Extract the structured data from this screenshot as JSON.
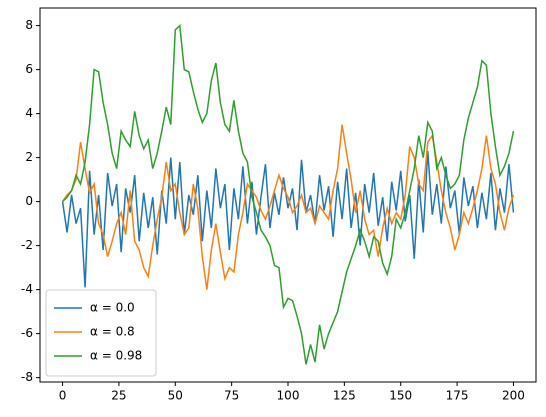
{
  "chart_data": {
    "type": "line",
    "x": [
      0,
      2,
      4,
      6,
      8,
      10,
      12,
      14,
      16,
      18,
      20,
      22,
      24,
      26,
      28,
      30,
      32,
      34,
      36,
      38,
      40,
      42,
      44,
      46,
      48,
      50,
      52,
      54,
      56,
      58,
      60,
      62,
      64,
      66,
      68,
      70,
      72,
      74,
      76,
      78,
      80,
      82,
      84,
      86,
      88,
      90,
      92,
      94,
      96,
      98,
      100,
      102,
      104,
      106,
      108,
      110,
      112,
      114,
      116,
      118,
      120,
      122,
      124,
      126,
      128,
      130,
      132,
      134,
      136,
      138,
      140,
      142,
      144,
      146,
      148,
      150,
      152,
      154,
      156,
      158,
      160,
      162,
      164,
      166,
      168,
      170,
      172,
      174,
      176,
      178,
      180,
      182,
      184,
      186,
      188,
      190,
      192,
      194,
      196,
      198,
      200
    ],
    "series": [
      {
        "name": "α = 0.0",
        "color": "#1f77b4",
        "values": [
          0,
          -1.4,
          0.3,
          -1.0,
          -0.3,
          -3.9,
          1.4,
          -1.5,
          0.3,
          -2.2,
          1.3,
          -0.2,
          0.8,
          -2.3,
          0.6,
          -0.5,
          1.2,
          -1.8,
          0.4,
          -1.2,
          0.2,
          -2.4,
          0.5,
          -1.0,
          2.0,
          -0.8,
          1.8,
          -1.5,
          0.3,
          -0.6,
          1.2,
          -1.8,
          0.5,
          -1.2,
          1.5,
          -0.3,
          0.8,
          -2.2,
          0.6,
          -0.8,
          1.6,
          -1.0,
          0.9,
          -1.5,
          0.2,
          1.7,
          -1.2,
          0.4,
          -0.6,
          1.1,
          -0.3,
          0.6,
          -1.3,
          1.9,
          -0.5,
          0.3,
          -1.0,
          1.2,
          -0.4,
          0.7,
          -1.6,
          0.9,
          -0.8,
          1.5,
          -1.2,
          0.4,
          -2.0,
          0.8,
          -0.5,
          1.3,
          -1.1,
          0.2,
          -1.8,
          0.9,
          -0.4,
          1.4,
          -0.9,
          0.3,
          -2.6,
          1.0,
          -1.4,
          2.3,
          -0.6,
          0.8,
          -1.0,
          1.6,
          -0.3,
          0.5,
          -1.5,
          1.1,
          -0.2,
          0.7,
          -1.2,
          0.4,
          -0.8,
          1.3,
          -1.3,
          0.6,
          -0.5,
          1.7,
          -0.5
        ]
      },
      {
        "name": "α = 0.8",
        "color": "#ff7f0e",
        "values": [
          0,
          0.3,
          0.5,
          1.0,
          2.7,
          1.5,
          0.4,
          0.8,
          -1.0,
          -1.5,
          -2.5,
          -1.8,
          -1.0,
          -0.5,
          -1.5,
          0.5,
          -1.8,
          -2.2,
          -3.0,
          -3.4,
          -2.0,
          -0.8,
          0.2,
          1.8,
          0.5,
          0.8,
          -0.5,
          -1.5,
          -1.2,
          0.8,
          -0.3,
          -2.5,
          -4.0,
          -2.2,
          -1.0,
          -2.3,
          -3.5,
          -3.0,
          -3.2,
          -1.5,
          -0.5,
          0.8,
          0.5,
          0.2,
          -0.4,
          -0.8,
          -0.2,
          0.5,
          1.2,
          0.6,
          0.2,
          -0.5,
          -0.2,
          0.3,
          -0.5,
          -0.3,
          -1.0,
          -0.2,
          -0.5,
          -0.8,
          0.5,
          1.5,
          3.5,
          2.2,
          1.0,
          -0.5,
          0.5,
          -0.8,
          -1.5,
          -1.3,
          -2.5,
          -1.2,
          -0.3,
          -1.0,
          -0.5,
          -0.8,
          0.3,
          2.5,
          2.0,
          0.8,
          0.5,
          2.7,
          3.0,
          1.8,
          0.5,
          -0.5,
          -1.2,
          -2.2,
          -1.5,
          -0.5,
          -1.0,
          -0.3,
          0.5,
          1.5,
          3.0,
          1.5,
          0.8,
          -0.5,
          -1.3,
          -0.3,
          0.3
        ]
      },
      {
        "name": "α = 0.98",
        "color": "#2ca02c",
        "values": [
          0,
          0.2,
          0.5,
          1.2,
          0.8,
          1.8,
          3.5,
          6.0,
          5.9,
          4.5,
          3.5,
          2.2,
          1.5,
          3.2,
          2.8,
          2.5,
          4.1,
          3.0,
          2.4,
          2.8,
          1.5,
          2.2,
          3.2,
          4.3,
          3.5,
          7.8,
          8.0,
          6.0,
          5.9,
          5.0,
          4.2,
          3.6,
          4.0,
          5.5,
          6.3,
          4.5,
          3.5,
          3.2,
          4.6,
          3.2,
          2.2,
          1.8,
          0.2,
          -0.5,
          -1.3,
          -1.6,
          -2.0,
          -2.9,
          -3.0,
          -4.8,
          -4.4,
          -4.5,
          -5.2,
          -6.0,
          -7.4,
          -6.5,
          -7.3,
          -5.6,
          -6.7,
          -6.0,
          -5.5,
          -5.0,
          -4.1,
          -3.2,
          -2.6,
          -2.0,
          -1.3,
          -1.8,
          -2.5,
          -1.6,
          -1.8,
          -2.8,
          -3.3,
          -2.5,
          -0.8,
          -1.2,
          -0.5,
          0.5,
          1.5,
          3.0,
          2.0,
          3.6,
          3.2,
          1.5,
          2.0,
          1.2,
          0.6,
          0.8,
          1.2,
          2.8,
          3.8,
          4.5,
          5.2,
          6.4,
          6.2,
          4.0,
          2.5,
          1.2,
          1.6,
          2.2,
          3.2
        ]
      }
    ],
    "xlim": [
      -10,
      210
    ],
    "ylim": [
      -8.2,
      8.8
    ],
    "xticks": [
      0,
      25,
      50,
      75,
      100,
      125,
      150,
      175,
      200
    ],
    "yticks": [
      -8,
      -6,
      -4,
      -2,
      0,
      2,
      4,
      6,
      8
    ],
    "legend": "lower left"
  }
}
